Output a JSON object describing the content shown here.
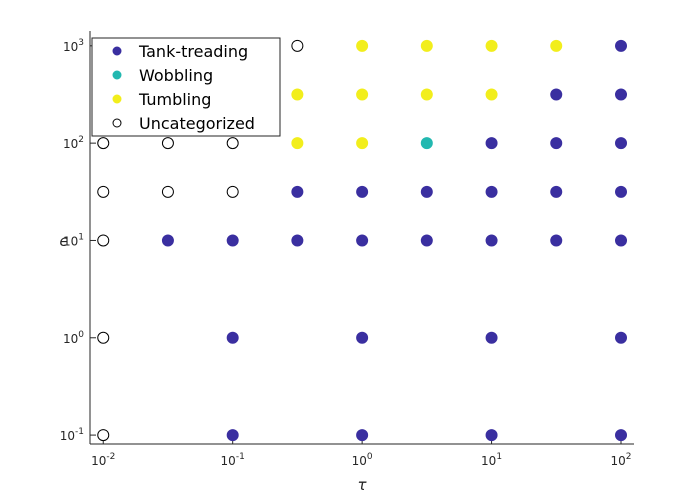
{
  "chart_data": {
    "type": "scatter",
    "x_label": "τ",
    "y_label": "ϵ",
    "xscale": "log",
    "yscale": "log",
    "xlim": [
      0.0079,
      126
    ],
    "ylim": [
      0.081,
      1420
    ],
    "xticks": [
      {
        "value": 0.01,
        "label": "10^-2"
      },
      {
        "value": 0.1,
        "label": "10^-1"
      },
      {
        "value": 1,
        "label": "10^0"
      },
      {
        "value": 10,
        "label": "10^1"
      },
      {
        "value": 100,
        "label": "10^2"
      }
    ],
    "yticks": [
      {
        "value": 0.1,
        "label": "10^-1"
      },
      {
        "value": 1,
        "label": "10^0"
      },
      {
        "value": 10,
        "label": "10^1"
      },
      {
        "value": 100,
        "label": "10^2"
      },
      {
        "value": 1000,
        "label": "10^3"
      }
    ],
    "legend": "upper left",
    "series": [
      {
        "name": "Tank-treading",
        "color": "#3a2fa0",
        "filled": true,
        "x": [
          100,
          31.6,
          100,
          10,
          31.6,
          100,
          0.316,
          1,
          3.16,
          10,
          31.6,
          100,
          0.0316,
          0.1,
          0.316,
          1,
          3.16,
          10,
          31.6,
          100,
          0.1,
          1,
          10,
          100,
          0.1,
          1,
          10,
          100
        ],
        "y": [
          1000,
          316,
          316,
          100,
          100,
          100,
          31.6,
          31.6,
          31.6,
          31.6,
          31.6,
          31.6,
          10,
          10,
          10,
          10,
          10,
          10,
          10,
          10,
          1,
          1,
          1,
          1,
          0.1,
          0.1,
          0.1,
          0.1
        ]
      },
      {
        "name": "Wobbling",
        "color": "#22b8b0",
        "filled": true,
        "x": [
          3.16
        ],
        "y": [
          100
        ]
      },
      {
        "name": "Tumbling",
        "color": "#f2ee1c",
        "filled": true,
        "x": [
          1,
          3.16,
          10,
          31.6,
          0.316,
          1,
          3.16,
          10,
          0.316,
          1
        ],
        "y": [
          1000,
          1000,
          1000,
          1000,
          316,
          316,
          316,
          316,
          100,
          100
        ]
      },
      {
        "name": "Uncategorized",
        "color": "#000000",
        "filled": false,
        "x": [
          0.316,
          0.01,
          0.0316,
          0.1,
          0.01,
          0.0316,
          0.1,
          0.01,
          0.01,
          0.01
        ],
        "y": [
          1000,
          100,
          100,
          100,
          31.6,
          31.6,
          31.6,
          10,
          1,
          0.1
        ]
      }
    ]
  }
}
